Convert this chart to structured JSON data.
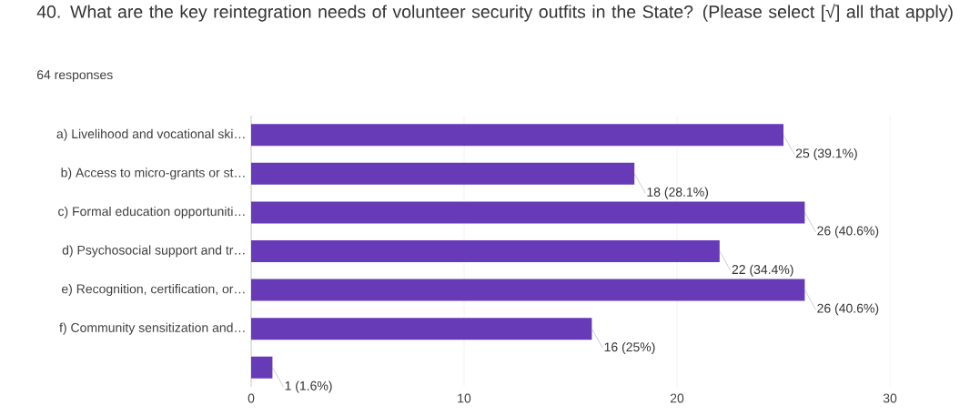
{
  "chart_data": {
    "type": "bar",
    "orientation": "horizontal",
    "title": "40. What are the key reintegration needs of volunteer security outfits in the State? (Please select [√] all that apply)",
    "subtitle": "64 responses",
    "categories": [
      "a) Livelihood and vocational ski…",
      "b) Access to micro-grants or st…",
      "c) Formal education opportuniti…",
      "d) Psychosocial support and tr…",
      "e) Recognition, certification, or…",
      "f) Community sensitization and…",
      null
    ],
    "values": [
      25,
      18,
      26,
      22,
      26,
      16,
      1
    ],
    "value_labels": [
      "25 (39.1%)",
      "18 (28.1%)",
      "26 (40.6%)",
      "22 (34.4%)",
      "26 (40.6%)",
      "16 (25%)",
      "1 (1.6%)"
    ],
    "color": "#673ab7",
    "xlim": [
      0,
      30
    ],
    "xticks": [
      0,
      10,
      20,
      30
    ],
    "grid": "x"
  }
}
